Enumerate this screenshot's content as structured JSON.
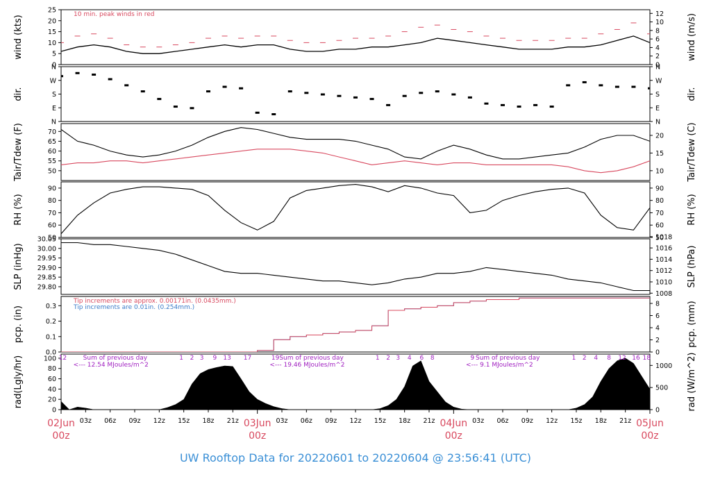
{
  "chart_data": [
    {
      "type": "line",
      "panel": "wind",
      "ylabel": "wind (kts)",
      "ylabel_right": "wind (m/s)",
      "ylim": [
        0,
        25
      ],
      "ylim_right": [
        0,
        12.86
      ],
      "yticks": [
        0,
        5,
        10,
        15,
        20,
        25
      ],
      "yticks_right": [
        0,
        2,
        4,
        6,
        8,
        10,
        12
      ],
      "annotation": "10 min. peak winds in red",
      "colors": {
        "sustained": "#000000",
        "peak": "#d8485e"
      },
      "x_hours": [
        0,
        2,
        4,
        6,
        8,
        10,
        12,
        14,
        16,
        18,
        20,
        22,
        24,
        26,
        28,
        30,
        32,
        34,
        36,
        38,
        40,
        42,
        44,
        46,
        48,
        50,
        52,
        54,
        56,
        58,
        60,
        62,
        64,
        66,
        68,
        70,
        72
      ],
      "series": [
        {
          "name": "sustained",
          "values": [
            6,
            8,
            9,
            8,
            6,
            5,
            5,
            6,
            7,
            8,
            9,
            8,
            9,
            9,
            7,
            6,
            6,
            7,
            7,
            8,
            8,
            9,
            10,
            12,
            11,
            10,
            9,
            8,
            7,
            7,
            7,
            8,
            8,
            9,
            11,
            13,
            10
          ]
        },
        {
          "name": "peak",
          "values": [
            10,
            13,
            14,
            12,
            9,
            8,
            8,
            9,
            10,
            12,
            13,
            12,
            13,
            13,
            11,
            10,
            10,
            11,
            12,
            12,
            13,
            15,
            17,
            18,
            16,
            15,
            13,
            12,
            11,
            11,
            11,
            12,
            12,
            14,
            16,
            19,
            14
          ]
        }
      ]
    },
    {
      "type": "scatter",
      "panel": "dir",
      "ylabel": "dir.",
      "ylabel_right": "dir.",
      "yticks": [
        "N",
        "E",
        "S",
        "W",
        "N"
      ],
      "ylim": [
        0,
        360
      ],
      "x_hours": [
        0,
        2,
        4,
        6,
        8,
        10,
        12,
        14,
        16,
        18,
        20,
        22,
        24,
        26,
        28,
        30,
        32,
        34,
        36,
        38,
        40,
        42,
        44,
        46,
        48,
        50,
        52,
        54,
        56,
        58,
        60,
        62,
        64,
        66,
        68,
        70,
        72
      ],
      "values": [
        300,
        320,
        310,
        280,
        240,
        200,
        150,
        100,
        90,
        200,
        230,
        220,
        60,
        50,
        200,
        190,
        180,
        170,
        160,
        150,
        110,
        170,
        190,
        200,
        180,
        160,
        120,
        110,
        100,
        110,
        100,
        240,
        260,
        240,
        230,
        230,
        220
      ]
    },
    {
      "type": "line",
      "panel": "temp",
      "ylabel": "Tair/Tdew (F)",
      "ylabel_right": "Tair/Tdew (C)",
      "ylim": [
        45,
        74
      ],
      "yticks": [
        50,
        55,
        60,
        65,
        70
      ],
      "yticks_right": [
        10,
        15,
        20
      ],
      "colors": {
        "tair": "#000000",
        "tdew": "#d8485e"
      },
      "x_hours": [
        0,
        2,
        4,
        6,
        8,
        10,
        12,
        14,
        16,
        18,
        20,
        22,
        24,
        26,
        28,
        30,
        32,
        34,
        36,
        38,
        40,
        42,
        44,
        46,
        48,
        50,
        52,
        54,
        56,
        58,
        60,
        62,
        64,
        66,
        68,
        70,
        72
      ],
      "series": [
        {
          "name": "tair",
          "values": [
            71,
            65,
            63,
            60,
            58,
            57,
            58,
            60,
            63,
            67,
            70,
            72,
            71,
            69,
            67,
            66,
            66,
            66,
            65,
            63,
            61,
            57,
            56,
            60,
            63,
            61,
            58,
            56,
            56,
            57,
            58,
            59,
            62,
            66,
            68,
            68,
            65
          ]
        },
        {
          "name": "tdew",
          "values": [
            53,
            54,
            54,
            55,
            55,
            54,
            55,
            56,
            57,
            58,
            59,
            60,
            61,
            61,
            61,
            60,
            59,
            57,
            55,
            53,
            54,
            55,
            54,
            53,
            54,
            54,
            53,
            53,
            53,
            53,
            53,
            52,
            50,
            49,
            50,
            52,
            55
          ]
        }
      ]
    },
    {
      "type": "line",
      "panel": "rh",
      "ylabel": "RH (%)",
      "ylabel_right": "RH (%)",
      "ylim": [
        50,
        95
      ],
      "yticks": [
        50,
        60,
        70,
        80,
        90
      ],
      "yticks_right": [
        50,
        60,
        70,
        80,
        90
      ],
      "x_hours": [
        0,
        2,
        4,
        6,
        8,
        10,
        12,
        14,
        16,
        18,
        20,
        22,
        24,
        26,
        28,
        30,
        32,
        34,
        36,
        38,
        40,
        42,
        44,
        46,
        48,
        50,
        52,
        54,
        56,
        58,
        60,
        62,
        64,
        66,
        68,
        70,
        72
      ],
      "values": [
        53,
        68,
        78,
        86,
        89,
        91,
        91,
        90,
        89,
        84,
        72,
        62,
        56,
        63,
        82,
        88,
        90,
        92,
        93,
        91,
        87,
        92,
        90,
        86,
        84,
        70,
        72,
        80,
        84,
        87,
        89,
        90,
        86,
        68,
        58,
        56,
        74
      ]
    },
    {
      "type": "line",
      "panel": "slp",
      "ylabel": "SLP (inHg)",
      "ylabel_right": "SLP (hPa)",
      "ylim": [
        29.76,
        30.05
      ],
      "yticks": [
        29.8,
        29.85,
        29.9,
        29.95,
        30.0,
        30.05
      ],
      "yticks_right": [
        1008,
        1010,
        1012,
        1014,
        1016,
        1018
      ],
      "x_hours": [
        0,
        2,
        4,
        6,
        8,
        10,
        12,
        14,
        16,
        18,
        20,
        22,
        24,
        26,
        28,
        30,
        32,
        34,
        36,
        38,
        40,
        42,
        44,
        46,
        48,
        50,
        52,
        54,
        56,
        58,
        60,
        62,
        64,
        66,
        68,
        70,
        72
      ],
      "values": [
        30.03,
        30.03,
        30.02,
        30.02,
        30.01,
        30.0,
        29.99,
        29.97,
        29.94,
        29.91,
        29.88,
        29.87,
        29.87,
        29.86,
        29.85,
        29.84,
        29.83,
        29.83,
        29.82,
        29.81,
        29.82,
        29.84,
        29.85,
        29.87,
        29.87,
        29.88,
        29.9,
        29.89,
        29.88,
        29.87,
        29.86,
        29.84,
        29.83,
        29.82,
        29.8,
        29.78,
        29.78
      ]
    },
    {
      "type": "line",
      "panel": "pcp",
      "ylabel": "pcp. (in)",
      "ylabel_right": "pcp. (mm)",
      "ylim": [
        0,
        0.36
      ],
      "yticks": [
        0.0,
        0.1,
        0.2,
        0.3
      ],
      "yticks_right": [
        0,
        2,
        4,
        6,
        8
      ],
      "annotation_red": "Tip increments are approx. 0.00171in. (0.0435mm.)",
      "annotation_blue": "Tip increments are 0.01in. (0.254mm.)",
      "colors": {
        "approx": "#d8485e",
        "exact": "#3a7bc8"
      },
      "x_hours": [
        0,
        2,
        4,
        6,
        8,
        10,
        12,
        14,
        16,
        18,
        20,
        22,
        24,
        26,
        28,
        30,
        32,
        34,
        36,
        38,
        40,
        42,
        44,
        46,
        48,
        50,
        52,
        54,
        56,
        58,
        60,
        62,
        64,
        66,
        68,
        70,
        72
      ],
      "series": [
        {
          "name": "exact",
          "values": [
            0,
            0,
            0,
            0,
            0,
            0,
            0,
            0,
            0,
            0,
            0,
            0,
            0.01,
            0.08,
            0.1,
            0.11,
            0.12,
            0.13,
            0.14,
            0.17,
            0.27,
            0.28,
            0.29,
            0.3,
            0.32,
            0.33,
            0.34,
            0.34,
            0.35,
            0.35,
            0.35,
            0.35,
            0.35,
            0.35,
            0.35,
            0.35,
            0.35
          ]
        },
        {
          "name": "approx",
          "values": [
            0,
            0,
            0,
            0,
            0,
            0,
            0,
            0,
            0,
            0,
            0,
            0,
            0.01,
            0.08,
            0.1,
            0.11,
            0.12,
            0.13,
            0.14,
            0.17,
            0.27,
            0.28,
            0.29,
            0.3,
            0.32,
            0.33,
            0.34,
            0.34,
            0.35,
            0.35,
            0.35,
            0.35,
            0.35,
            0.35,
            0.35,
            0.35,
            0.35
          ]
        }
      ]
    },
    {
      "type": "area",
      "panel": "rad",
      "ylabel": "rad(Lgly/hr)",
      "ylabel_right": "rad (W/m^2)",
      "ylim": [
        0,
        108
      ],
      "yticks": [
        0,
        20,
        40,
        60,
        80,
        100
      ],
      "yticks_right": [
        0,
        500,
        1000
      ],
      "color": "#000000",
      "annotations": [
        {
          "label": "Sum of previous day",
          "value": "<--- 12.54 MJoules/m^2",
          "x_hour": 1.5
        },
        {
          "label": "Sum of previous day",
          "value": "<--- 19.46 MJoules/m^2",
          "x_hour": 25.5
        },
        {
          "label": "Sum of previous day",
          "value": "<--- 9.1 MJoules/m^2",
          "x_hour": 49.5
        }
      ],
      "hour_markers": [
        {
          "label": "12",
          "x_hour": 0.2
        },
        {
          "label": "1",
          "x_hour": 14.7
        },
        {
          "label": "2",
          "x_hour": 16.0
        },
        {
          "label": "3",
          "x_hour": 17.2
        },
        {
          "label": "9",
          "x_hour": 18.8
        },
        {
          "label": "13",
          "x_hour": 20.3
        },
        {
          "label": "17",
          "x_hour": 22.8
        },
        {
          "label": "19",
          "x_hour": 26.2
        },
        {
          "label": "1",
          "x_hour": 38.7
        },
        {
          "label": "2",
          "x_hour": 40.0
        },
        {
          "label": "3",
          "x_hour": 41.2
        },
        {
          "label": "4",
          "x_hour": 42.6
        },
        {
          "label": "6",
          "x_hour": 44.1
        },
        {
          "label": "8",
          "x_hour": 45.4
        },
        {
          "label": "9",
          "x_hour": 50.3
        },
        {
          "label": "1",
          "x_hour": 62.7
        },
        {
          "label": "2",
          "x_hour": 64.0
        },
        {
          "label": "4",
          "x_hour": 65.4
        },
        {
          "label": "8",
          "x_hour": 67.0
        },
        {
          "label": "12",
          "x_hour": 68.6
        },
        {
          "label": "16",
          "x_hour": 70.3
        },
        {
          "label": "18",
          "x_hour": 71.6
        }
      ],
      "x_hours": [
        0,
        1,
        2,
        3,
        4,
        5,
        6,
        7,
        8,
        9,
        10,
        11,
        12,
        13,
        14,
        15,
        16,
        17,
        18,
        19,
        20,
        21,
        22,
        23,
        24,
        25,
        26,
        27,
        28,
        29,
        30,
        31,
        32,
        33,
        34,
        35,
        36,
        37,
        38,
        39,
        40,
        41,
        42,
        43,
        44,
        45,
        46,
        47,
        48,
        49,
        50,
        51,
        52,
        53,
        54,
        55,
        56,
        57,
        58,
        59,
        60,
        61,
        62,
        63,
        64,
        65,
        66,
        67,
        68,
        69,
        70,
        71,
        72
      ],
      "values": [
        16,
        0,
        5,
        3,
        0,
        0,
        0,
        0,
        0,
        0,
        0,
        0,
        0,
        4,
        10,
        20,
        50,
        70,
        78,
        82,
        85,
        84,
        60,
        35,
        20,
        12,
        6,
        2,
        0,
        0,
        0,
        0,
        0,
        0,
        0,
        0,
        0,
        0,
        0,
        2,
        8,
        20,
        45,
        85,
        95,
        55,
        35,
        15,
        5,
        1,
        0,
        0,
        0,
        0,
        0,
        0,
        0,
        0,
        0,
        0,
        0,
        0,
        0,
        3,
        10,
        25,
        55,
        80,
        95,
        100,
        90,
        65,
        40
      ]
    }
  ],
  "time_axis": {
    "hour_ticks": [
      "03z",
      "06z",
      "09z",
      "12z",
      "15z",
      "18z",
      "21z",
      "03z",
      "06z",
      "09z",
      "12z",
      "15z",
      "18z",
      "21z",
      "03z",
      "06z",
      "09z",
      "12z",
      "15z",
      "18z",
      "21z"
    ],
    "day_labels": [
      {
        "date": "02Jun",
        "hour": "00z"
      },
      {
        "date": "03Jun",
        "hour": "00z"
      },
      {
        "date": "04Jun",
        "hour": "00z"
      },
      {
        "date": "05Jun",
        "hour": "00z"
      }
    ]
  },
  "title": "UW Rooftop Data for 20220601  to  20220604 @ 23:56:41  (UTC)"
}
